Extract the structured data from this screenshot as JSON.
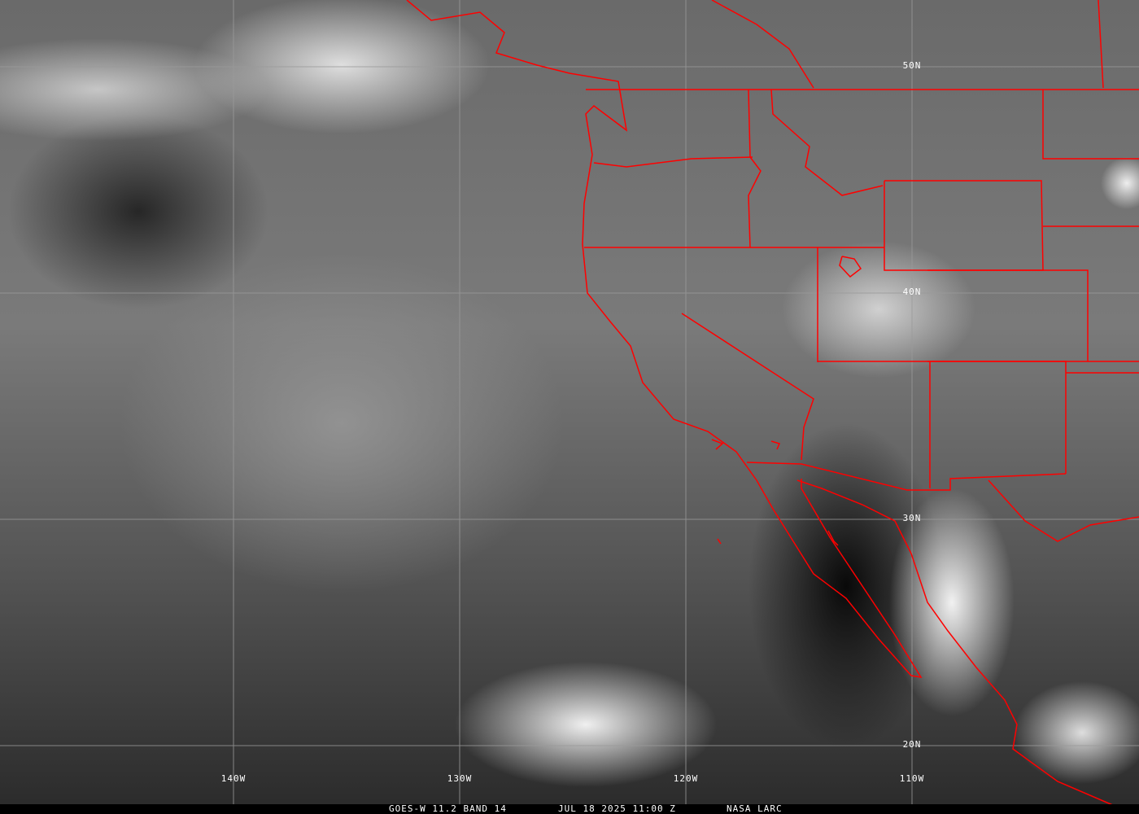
{
  "caption": {
    "product": "GOES-W 11.2 BAND 14",
    "datetime": "JUL 18 2025 11:00 Z",
    "credit": "NASA LARC"
  },
  "grid": {
    "longitudes": [
      "140W",
      "130W",
      "120W",
      "110W"
    ],
    "latitudes": [
      "50N",
      "40N",
      "30N",
      "20N"
    ]
  },
  "colors": {
    "borders": "#ff0000",
    "grid": "#a0a0a0",
    "background": "#000000"
  }
}
